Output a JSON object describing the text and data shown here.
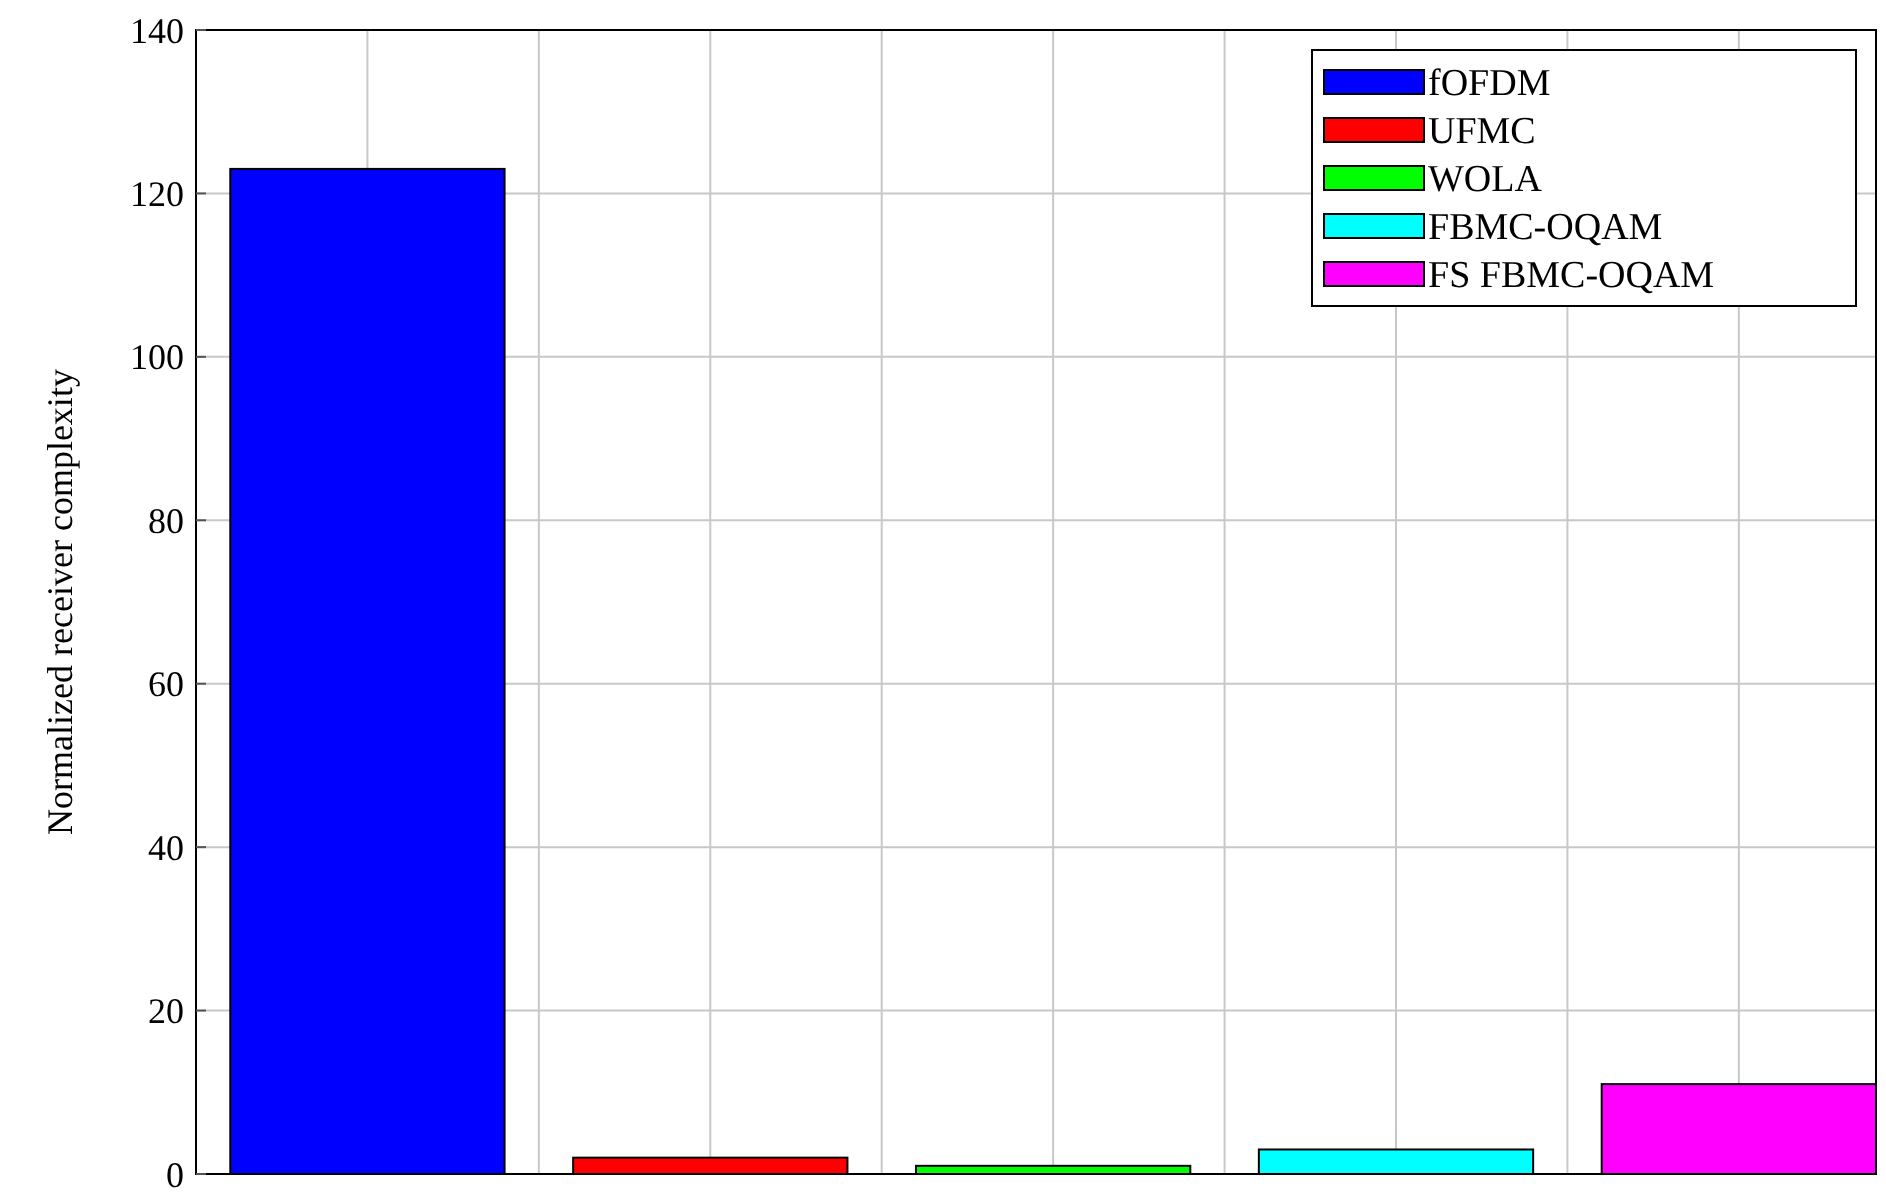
{
  "chart_data": {
    "type": "bar",
    "ylabel": "Normalized receiver complexity",
    "categories": [
      null
    ],
    "ylim": [
      0,
      140
    ],
    "yticks": [
      0,
      20,
      40,
      60,
      80,
      100,
      120,
      140
    ],
    "grid": true,
    "legend": "top right",
    "tick_labels": "y",
    "series": [
      {
        "name": "fOFDM",
        "color": "#0000ff",
        "values": [
          123
        ]
      },
      {
        "name": "UFMC",
        "color": "#ff0000",
        "values": [
          2
        ]
      },
      {
        "name": "WOLA",
        "color": "#00ff00",
        "values": [
          1
        ]
      },
      {
        "name": "FBMC-OQAM",
        "color": "#00ffff",
        "values": [
          3
        ]
      },
      {
        "name": "FS FBMC-OQAM",
        "color": "#ff00ff",
        "values": [
          11
        ]
      }
    ]
  }
}
